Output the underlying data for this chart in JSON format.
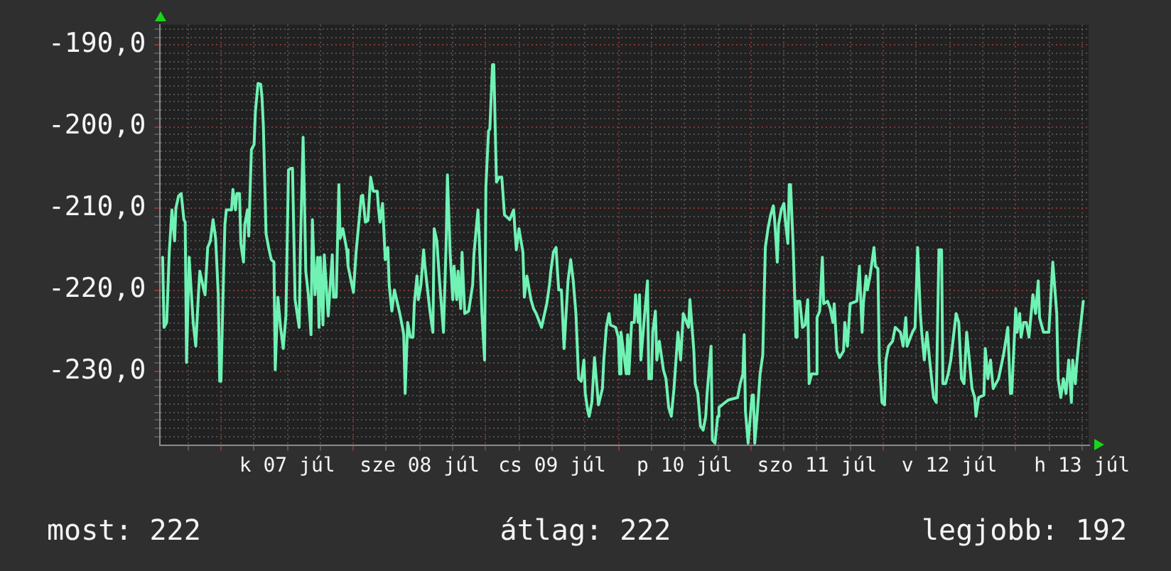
{
  "chart_data": {
    "type": "line",
    "annotations": [
      "most: 222",
      "átlag: 222",
      "legjobb: 192"
    ],
    "color": "#6ff2b4",
    "marker": "none",
    "line_style": "solid",
    "grid": true,
    "xlim": [
      "--07-06T12:58",
      "--07-13T13:12"
    ],
    "xticks": [
      {
        "value": "--07-06T18:00",
        "label": null
      },
      {
        "value": "--07-07T00:00",
        "label": null
      },
      {
        "value": "--07-07T06:00",
        "label": null
      },
      {
        "value": "--07-07T12:00",
        "label": "k 07 júl"
      },
      {
        "value": "--07-07T18:00",
        "label": null
      },
      {
        "value": "--07-08T00:00",
        "label": null
      },
      {
        "value": "--07-08T06:00",
        "label": null
      },
      {
        "value": "--07-08T12:00",
        "label": "sze 08 júl"
      },
      {
        "value": "--07-08T18:00",
        "label": null
      },
      {
        "value": "--07-09T00:00",
        "label": null
      },
      {
        "value": "--07-09T06:00",
        "label": null
      },
      {
        "value": "--07-09T12:00",
        "label": "cs 09 júl"
      },
      {
        "value": "--07-09T18:00",
        "label": null
      },
      {
        "value": "--07-10T00:00",
        "label": null
      },
      {
        "value": "--07-10T06:00",
        "label": null
      },
      {
        "value": "--07-10T12:00",
        "label": "p 10 júl"
      },
      {
        "value": "--07-10T18:00",
        "label": null
      },
      {
        "value": "--07-11T00:00",
        "label": null
      },
      {
        "value": "--07-11T06:00",
        "label": null
      },
      {
        "value": "--07-11T12:00",
        "label": "szo 11 júl"
      },
      {
        "value": "--07-11T18:00",
        "label": null
      },
      {
        "value": "--07-12T00:00",
        "label": null
      },
      {
        "value": "--07-12T06:00",
        "label": null
      },
      {
        "value": "--07-12T12:00",
        "label": "v 12 júl"
      },
      {
        "value": "--07-12T18:00",
        "label": null
      },
      {
        "value": "--07-13T00:00",
        "label": null
      },
      {
        "value": "--07-13T06:00",
        "label": null
      },
      {
        "value": "--07-13T12:00",
        "label": "h 13 júl"
      }
    ],
    "ylim": [
      -239,
      -187.5
    ],
    "yticks": [
      {
        "value": -238,
        "label": null
      },
      {
        "value": -237,
        "label": null
      },
      {
        "value": -236,
        "label": null
      },
      {
        "value": -235,
        "label": null
      },
      {
        "value": -234,
        "label": null
      },
      {
        "value": -233,
        "label": null
      },
      {
        "value": -232,
        "label": null
      },
      {
        "value": -231,
        "label": null
      },
      {
        "value": -230,
        "label": "-230,0"
      },
      {
        "value": -229,
        "label": null
      },
      {
        "value": -228,
        "label": null
      },
      {
        "value": -227,
        "label": null
      },
      {
        "value": -226,
        "label": null
      },
      {
        "value": -225,
        "label": null
      },
      {
        "value": -224,
        "label": null
      },
      {
        "value": -223,
        "label": null
      },
      {
        "value": -222,
        "label": null
      },
      {
        "value": -221,
        "label": null
      },
      {
        "value": -220,
        "label": "-220,0"
      },
      {
        "value": -219,
        "label": null
      },
      {
        "value": -218,
        "label": null
      },
      {
        "value": -217,
        "label": null
      },
      {
        "value": -216,
        "label": null
      },
      {
        "value": -215,
        "label": null
      },
      {
        "value": -214,
        "label": null
      },
      {
        "value": -213,
        "label": null
      },
      {
        "value": -212,
        "label": null
      },
      {
        "value": -211,
        "label": null
      },
      {
        "value": -210,
        "label": "-210,0"
      },
      {
        "value": -209,
        "label": null
      },
      {
        "value": -208,
        "label": null
      },
      {
        "value": -207,
        "label": null
      },
      {
        "value": -206,
        "label": null
      },
      {
        "value": -205,
        "label": null
      },
      {
        "value": -204,
        "label": null
      },
      {
        "value": -203,
        "label": null
      },
      {
        "value": -202,
        "label": null
      },
      {
        "value": -201,
        "label": null
      },
      {
        "value": -200,
        "label": "-200,0"
      },
      {
        "value": -199,
        "label": null
      },
      {
        "value": -198,
        "label": null
      },
      {
        "value": -197,
        "label": null
      },
      {
        "value": -196,
        "label": null
      },
      {
        "value": -195,
        "label": null
      },
      {
        "value": -194,
        "label": null
      },
      {
        "value": -193,
        "label": null
      },
      {
        "value": -192,
        "label": null
      },
      {
        "value": -191,
        "label": null
      },
      {
        "value": -190,
        "label": "-190,0"
      },
      {
        "value": -189,
        "label": null
      },
      {
        "value": -188,
        "label": null
      }
    ],
    "x": [
      "--07-06T13:26",
      "--07-06T13:41",
      "--07-06T14:10",
      "--07-06T14:38",
      "--07-06T15:07",
      "--07-06T15:36",
      "--07-06T15:50",
      "--07-06T16:19",
      "--07-06T16:48",
      "--07-06T17:17",
      "--07-06T17:31",
      "--07-06T17:46",
      "--07-06T18:14",
      "--07-06T18:58",
      "--07-06T19:26",
      "--07-06T19:55",
      "--07-06T20:10",
      "--07-06T20:53",
      "--07-06T21:07",
      "--07-06T21:36",
      "--07-06T22:05",
      "--07-06T22:34",
      "--07-06T23:02",
      "--07-06T23:31",
      "--07-06T23:46",
      "--07-07T00:00",
      "--07-07T00:29",
      "--07-07T00:43",
      "--07-07T00:58",
      "--07-07T01:55",
      "--07-07T02:10",
      "--07-07T02:38",
      "--07-07T02:53",
      "--07-07T03:22",
      "--07-07T03:36",
      "--07-07T04:05",
      "--07-07T04:19",
      "--07-07T04:48",
      "--07-07T05:02",
      "--07-07T05:31",
      "--07-07T06:00",
      "--07-07T06:14",
      "--07-07T06:43",
      "--07-07T07:12",
      "--07-07T07:26",
      "--07-07T07:41",
      "--07-07T08:10",
      "--07-07T08:38",
      "--07-07T09:07",
      "--07-07T09:36",
      "--07-07T09:50",
      "--07-07T10:19",
      "--07-07T10:48",
      "--07-07T11:17",
      "--07-07T11:46",
      "--07-07T12:14",
      "--07-07T12:43",
      "--07-07T12:58",
      "--07-07T13:26",
      "--07-07T14:10",
      "--07-07T14:24",
      "--07-07T14:53",
      "--07-07T15:07",
      "--07-07T15:22",
      "--07-07T15:50",
      "--07-07T16:19",
      "--07-07T16:34",
      "--07-07T17:02",
      "--07-07T17:31",
      "--07-07T17:46",
      "--07-07T18:00",
      "--07-07T18:29",
      "--07-07T18:43",
      "--07-07T19:26",
      "--07-07T20:10",
      "--07-07T20:24",
      "--07-07T20:53",
      "--07-07T21:22",
      "--07-07T21:36",
      "--07-07T22:05",
      "--07-07T22:48",
      "--07-07T23:02",
      "--07-08T00:00",
      "--07-08T00:29",
      "--07-08T01:26",
      "--07-08T01:41",
      "--07-08T02:10",
      "--07-08T02:38",
      "--07-08T03:07",
      "--07-08T03:36",
      "--07-08T04:19",
      "--07-08T04:34",
      "--07-08T04:48",
      "--07-08T05:17",
      "--07-08T05:46",
      "--07-08T06:14",
      "--07-08T06:29",
      "--07-08T06:58",
      "--07-08T07:26",
      "--07-08T08:24",
      "--07-08T08:53",
      "--07-08T09:07",
      "--07-08T09:22",
      "--07-08T09:50",
      "--07-08T10:19",
      "--07-08T10:48",
      "--07-08T11:02",
      "--07-08T11:31",
      "--07-08T11:46",
      "--07-08T12:14",
      "--07-08T12:43",
      "--07-08T12:58",
      "--07-08T13:26",
      "--07-08T13:55",
      "--07-08T14:24",
      "--07-08T14:38",
      "--07-08T15:07",
      "--07-08T15:36",
      "--07-08T16:19",
      "--07-08T16:48",
      "--07-08T17:02",
      "--07-08T17:31",
      "--07-08T18:00",
      "--07-08T18:14",
      "--07-08T18:43",
      "--07-08T18:58",
      "--07-08T19:26",
      "--07-08T19:41",
      "--07-08T20:10",
      "--07-08T20:53",
      "--07-08T21:36",
      "--07-08T21:50",
      "--07-08T22:19",
      "--07-08T22:34",
      "--07-08T22:48",
      "--07-08T23:17",
      "--07-08T23:46",
      "--07-09T00:00",
      "--07-09T00:29",
      "--07-09T00:43",
      "--07-09T01:12",
      "--07-09T01:26",
      "--07-09T01:41",
      "--07-09T01:55",
      "--07-09T02:24",
      "--07-09T02:53",
      "--07-09T03:22",
      "--07-09T04:19",
      "--07-09T05:02",
      "--07-09T05:17",
      "--07-09T05:31",
      "--07-09T06:00",
      "--07-09T06:43",
      "--07-09T06:58",
      "--07-09T07:26",
      "--07-09T08:10",
      "--07-09T08:38",
      "--07-09T09:07",
      "--07-09T10:05",
      "--07-09T11:02",
      "--07-09T11:31",
      "--07-09T11:46",
      "--07-09T12:14",
      "--07-09T12:43",
      "--07-09T12:58",
      "--07-09T13:12",
      "--07-09T13:41",
      "--07-09T14:10",
      "--07-09T14:53",
      "--07-09T15:22",
      "--07-09T15:50",
      "--07-09T16:19",
      "--07-09T16:48",
      "--07-09T17:17",
      "--07-09T17:46",
      "--07-09T18:00",
      "--07-09T18:29",
      "--07-09T18:43",
      "--07-09T19:12",
      "--07-09T19:41",
      "--07-09T20:24",
      "--07-09T21:07",
      "--07-09T21:22",
      "--07-09T21:50",
      "--07-09T22:19",
      "--07-09T22:34",
      "--07-09T23:31",
      "--07-10T00:00",
      "--07-10T00:14",
      "--07-10T00:29",
      "--07-10T01:26",
      "--07-10T01:41",
      "--07-10T01:55",
      "--07-10T02:24",
      "--07-10T02:53",
      "--07-10T03:07",
      "--07-10T03:36",
      "--07-10T03:50",
      "--07-10T04:05",
      "--07-10T04:34",
      "--07-10T05:17",
      "--07-10T05:31",
      "--07-10T06:00",
      "--07-10T06:14",
      "--07-10T06:43",
      "--07-10T06:58",
      "--07-10T07:26",
      "--07-10T08:10",
      "--07-10T08:38",
      "--07-10T09:07",
      "--07-10T09:36",
      "--07-10T10:05",
      "--07-10T10:48",
      "--07-10T11:17",
      "--07-10T11:46",
      "--07-10T12:43",
      "--07-10T12:58",
      "--07-10T13:41",
      "--07-10T13:55",
      "--07-10T14:24",
      "--07-10T14:53",
      "--07-10T15:22",
      "--07-10T15:50",
      "--07-10T16:05",
      "--07-10T16:48",
      "--07-10T17:02",
      "--07-10T17:31",
      "--07-10T18:00",
      "--07-10T18:14",
      "--07-10T19:55",
      "--07-10T21:36",
      "--07-10T22:05",
      "--07-10T22:34",
      "--07-10T22:48",
      "--07-10T23:02",
      "--07-10T23:31",
      "--07-11T00:14",
      "--07-11T00:29",
      "--07-11T00:43",
      "--07-11T01:12",
      "--07-11T01:26",
      "--07-11T01:41",
      "--07-11T02:10",
      "--07-11T02:38",
      "--07-11T03:07",
      "--07-11T03:36",
      "--07-11T04:05",
      "--07-11T04:19",
      "--07-11T04:48",
      "--07-11T05:02",
      "--07-11T05:31",
      "--07-11T06:00",
      "--07-11T06:14",
      "--07-11T06:43",
      "--07-11T06:58",
      "--07-11T07:12",
      "--07-11T07:41",
      "--07-11T08:10",
      "--07-11T08:24",
      "--07-11T08:53",
      "--07-11T09:22",
      "--07-11T09:50",
      "--07-11T10:19",
      "--07-11T10:34",
      "--07-11T11:02",
      "--07-11T11:46",
      "--07-11T12:00",
      "--07-11T12:29",
      "--07-11T12:58",
      "--07-11T13:12",
      "--07-11T13:55",
      "--07-11T14:24",
      "--07-11T14:53",
      "--07-11T15:07",
      "--07-11T15:36",
      "--07-11T16:05",
      "--07-11T16:48",
      "--07-11T17:02",
      "--07-11T17:31",
      "--07-11T18:00",
      "--07-11T19:12",
      "--07-11T19:41",
      "--07-11T20:10",
      "--07-11T20:24",
      "--07-11T20:53",
      "--07-11T21:07",
      "--07-11T21:36",
      "--07-11T22:19",
      "--07-11T22:34",
      "--07-11T23:02",
      "--07-11T23:17",
      "--07-11T23:46",
      "--07-12T00:14",
      "--07-12T00:29",
      "--07-12T00:58",
      "--07-12T01:41",
      "--07-12T02:10",
      "--07-12T03:07",
      "--07-12T03:36",
      "--07-12T04:05",
      "--07-12T04:19",
      "--07-12T05:17",
      "--07-12T05:46",
      "--07-12T06:14",
      "--07-12T06:43",
      "--07-12T06:58",
      "--07-12T07:26",
      "--07-12T07:55",
      "--07-12T08:24",
      "--07-12T09:07",
      "--07-12T09:36",
      "--07-12T10:05",
      "--07-12T10:34",
      "--07-12T10:48",
      "--07-12T11:17",
      "--07-12T11:46",
      "--07-12T12:14",
      "--07-12T13:12",
      "--07-12T13:41",
      "--07-12T14:10",
      "--07-12T14:38",
      "--07-12T15:07",
      "--07-12T15:36",
      "--07-12T16:05",
      "--07-12T16:34",
      "--07-12T16:48",
      "--07-12T17:17",
      "--07-12T18:14",
      "--07-12T18:29",
      "--07-12T18:58",
      "--07-12T19:26",
      "--07-12T19:55",
      "--07-12T20:53",
      "--07-12T21:50",
      "--07-12T22:34",
      "--07-12T23:02",
      "--07-12T23:17",
      "--07-13T00:00",
      "--07-13T00:14",
      "--07-13T00:43",
      "--07-13T00:58",
      "--07-13T01:26",
      "--07-13T01:55",
      "--07-13T02:24",
      "--07-13T03:07",
      "--07-13T03:36",
      "--07-13T04:05",
      "--07-13T04:19",
      "--07-13T05:02",
      "--07-13T06:00",
      "--07-13T06:43",
      "--07-13T07:26",
      "--07-13T07:41",
      "--07-13T08:10",
      "--07-13T08:38",
      "--07-13T09:07",
      "--07-13T09:36",
      "--07-13T10:05",
      "--07-13T10:19",
      "--07-13T10:48",
      "--07-13T11:02",
      "--07-13T11:31",
      "--07-13T12:00",
      "--07-13T12:14"
    ],
    "values": [
      -216,
      -224.6,
      -224,
      -215.4,
      -210.2,
      -214,
      -210,
      -208.5,
      -208.2,
      -211.4,
      -211.7,
      -228.9,
      -216,
      -224,
      -226.9,
      -220.6,
      -217.7,
      -220,
      -220.6,
      -214.8,
      -214,
      -211.4,
      -213.7,
      -220.6,
      -231.2,
      -231.2,
      -217.7,
      -212,
      -210.2,
      -210.2,
      -207.7,
      -210.2,
      -208.2,
      -208.2,
      -214.3,
      -216.6,
      -212,
      -210.2,
      -213.4,
      -202.8,
      -202.2,
      -198.2,
      -194.7,
      -194.8,
      -196.4,
      -199.9,
      -213.1,
      -214.8,
      -216.3,
      -216.6,
      -229.8,
      -220.9,
      -224.6,
      -227.2,
      -223.2,
      -205.3,
      -205.1,
      -205.1,
      -221.2,
      -224.6,
      -214.8,
      -201.3,
      -208.5,
      -217.7,
      -220.6,
      -225.5,
      -211.4,
      -220.6,
      -216,
      -224.6,
      -216,
      -224.3,
      -215.7,
      -223.2,
      -215.7,
      -220.9,
      -220.9,
      -207.1,
      -213.7,
      -212.5,
      -215.1,
      -217.1,
      -220.3,
      -215.4,
      -208.5,
      -208.4,
      -211.7,
      -211.5,
      -206.2,
      -207.9,
      -207.9,
      -210.2,
      -211.7,
      -209.4,
      -216.3,
      -214.8,
      -219.4,
      -222.6,
      -220,
      -222.9,
      -224.6,
      -225.5,
      -232.7,
      -224,
      -225.8,
      -225.8,
      -221.7,
      -218.3,
      -221.2,
      -219.4,
      -215.1,
      -217.1,
      -220,
      -222.9,
      -225.2,
      -212.5,
      -214,
      -218.9,
      -225.2,
      -214.3,
      -205.9,
      -215.4,
      -221.2,
      -217.1,
      -221.2,
      -217.7,
      -222.3,
      -215.4,
      -222.9,
      -222.6,
      -219.4,
      -215.7,
      -212,
      -210.2,
      -213.7,
      -222.9,
      -228.6,
      -207.4,
      -200.5,
      -200.3,
      -192.4,
      -192.4,
      -199.9,
      -206.8,
      -206.2,
      -206.2,
      -210.8,
      -211.4,
      -210.2,
      -212.8,
      -215.1,
      -212.5,
      -215.4,
      -220.9,
      -218.3,
      -221.2,
      -222.3,
      -222.9,
      -224.6,
      -221.7,
      -219.4,
      -217.7,
      -215.4,
      -214.8,
      -217.7,
      -220,
      -220,
      -227.2,
      -218.9,
      -216.3,
      -218.9,
      -222.9,
      -230.9,
      -231.2,
      -228.6,
      -232.7,
      -234.9,
      -235.5,
      -233.8,
      -228.3,
      -234.1,
      -232.1,
      -228.6,
      -224.6,
      -222.9,
      -224.3,
      -224.6,
      -225.8,
      -230.3,
      -225.2,
      -230.3,
      -225.5,
      -230.3,
      -224,
      -224,
      -220.6,
      -224,
      -220.6,
      -228.6,
      -224.6,
      -218.9,
      -230.9,
      -230.9,
      -225.2,
      -222.6,
      -228.6,
      -226.3,
      -229.8,
      -230.9,
      -234.4,
      -235.5,
      -232.1,
      -225.2,
      -228.6,
      -222.9,
      -224.6,
      -221.2,
      -227.5,
      -231.5,
      -232.7,
      -236.7,
      -237.2,
      -235.5,
      -232.7,
      -226.9,
      -238.4,
      -238.8,
      -235.5,
      -234.4,
      -233.5,
      -233.2,
      -231.5,
      -230.3,
      -225.5,
      -234.9,
      -238.8,
      -232.9,
      -232.9,
      -238.8,
      -234.9,
      -232.7,
      -230.3,
      -228,
      -214.8,
      -212.5,
      -210.8,
      -209.7,
      -211.4,
      -216.6,
      -212,
      -210.2,
      -209.4,
      -211.4,
      -214.3,
      -207.1,
      -207.1,
      -214.8,
      -225.8,
      -221.4,
      -221.4,
      -224.6,
      -224.3,
      -221.2,
      -231.5,
      -230.3,
      -230.3,
      -223.4,
      -222.6,
      -216,
      -221.7,
      -221.4,
      -222.3,
      -224,
      -221.7,
      -227.5,
      -228.3,
      -227.5,
      -224,
      -226.9,
      -221.7,
      -221.4,
      -217.1,
      -225.2,
      -221.7,
      -218.3,
      -220,
      -218.3,
      -214.8,
      -217.1,
      -217.4,
      -228.6,
      -233.8,
      -234.1,
      -228.6,
      -226.9,
      -226.3,
      -224.6,
      -225.2,
      -226.9,
      -223.4,
      -226.9,
      -225.2,
      -224.6,
      -214.8,
      -222.9,
      -225.2,
      -228.6,
      -225.2,
      -228.6,
      -233.2,
      -233.8,
      -215.1,
      -215.1,
      -231.5,
      -231.5,
      -230.3,
      -228.6,
      -222.9,
      -224,
      -230.9,
      -231.5,
      -225.2,
      -228.6,
      -232.1,
      -233.2,
      -235.5,
      -233.2,
      -232.9,
      -227.2,
      -230.9,
      -228.6,
      -232.1,
      -230.9,
      -227.8,
      -224.6,
      -232.7,
      -232.7,
      -222.3,
      -225.2,
      -222.9,
      -225.8,
      -224,
      -224,
      -225.8,
      -220.6,
      -222.9,
      -218.9,
      -223.4,
      -225.2,
      -225.2,
      -216.6,
      -222.9,
      -230.9,
      -233.2,
      -230.9,
      -232.7,
      -228.6,
      -233.8,
      -228.6,
      -231.5,
      -229.2,
      -225.8,
      -222.9,
      -221.4
    ]
  }
}
